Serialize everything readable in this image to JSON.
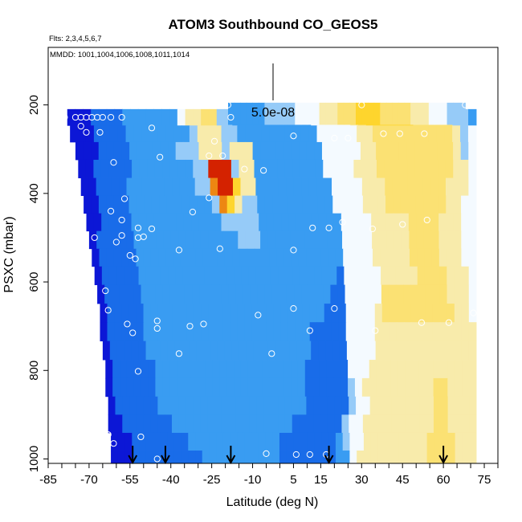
{
  "chart_data": {
    "type": "heatmap",
    "title": "ATOM3 Southbound CO_GEOS5",
    "flights_label": "Flts: 2,3,4,5,6,7",
    "dates_label": "MMDD: 1001,1004,1006,1008,1011,1014",
    "xlabel": "Latitude (deg N)",
    "ylabel": "PSXC (mbar)",
    "xlim": [
      -85,
      80
    ],
    "ylim": [
      1010,
      70
    ],
    "x_ticks": [
      -85,
      -70,
      -55,
      -40,
      -25,
      -10,
      5,
      15,
      30,
      45,
      60,
      75
    ],
    "y_ticks": [
      200,
      400,
      600,
      800,
      1000
    ],
    "scale_bar_label": "5.0e-08",
    "colors": {
      "low": "#0c17d6",
      "mid_low": "#1e8ef0",
      "neutral": "#f4faff",
      "mid_high": "#ffd21f",
      "high": "#d42200"
    },
    "profiles": [
      {
        "lat": -54,
        "p_top": 220,
        "p_bot": 1000
      },
      {
        "lat": -43,
        "p_top": 220,
        "p_bot": 1000
      },
      {
        "lat": -20,
        "p_top": 220,
        "p_bot": 1000
      },
      {
        "lat": 2,
        "p_top": 195,
        "p_bot": 1000
      },
      {
        "lat": 18,
        "p_top": 195,
        "p_bot": 1000
      },
      {
        "lat": 41,
        "p_top": 195,
        "p_bot": 1000
      },
      {
        "lat": 59,
        "p_top": 195,
        "p_bot": 1000
      }
    ],
    "arrow_latitudes": [
      -54,
      -42,
      -18,
      18,
      60
    ],
    "levels_mbar": [
      228,
      265,
      303,
      345,
      385,
      425,
      465,
      505,
      545,
      585,
      628,
      670,
      712,
      755,
      797,
      838,
      880,
      920,
      962,
      1000
    ],
    "row_start_lat": [
      -78,
      -77,
      -75,
      -74,
      -73,
      -72,
      -71,
      -70,
      -69,
      -68,
      -67,
      -66,
      -66,
      -65,
      -64,
      -64,
      -63,
      -63,
      -62,
      -62
    ],
    "value_key": {
      "q": -3,
      "w": -2,
      "e": -1.4,
      "r": -0.7,
      "t": 0,
      "y": 0.6,
      "u": 1,
      "i": 1.5,
      "o": 2.2,
      "p": 3
    },
    "rows": [
      "qqqwwwweeeeeeetyyuurreeeeeeeeeetttttyuiiiiiiuuuuurre",
      "qqqwwwweeeeeeeeryyyrreeeeeeeeeetttttyyuuuuuuuuuuyrt",
      "qqqwwwweeeeeerrryyyryyyeeeeeeeeetttttyyuuuuuuuuuuyrt",
      "qqwwwwweeeeeeeerrpppryyeeeeeeeeettttyyyuuuuuuuuuuyyt",
      "qqwwwweeeeeeeeerroppiyyeeeeeeeeeettttyyyuuuuuuuuyyyt",
      "qqwwwweeeeeeeeeeeroiyrreeeeeeeeeettttyyyuuuuuuuuyytt",
      "qqwwwweeeeeeeeeeeerrrrreeeeeeeeeeettttyyyyyuuuuyyytt",
      "qwwwwweeeeeeeeeeeeeerrreeeeeeeeeeettttyyyyyuuuuyyytt",
      "qwwwwweeeeeeeeeeeeeeeeeeeeeeeeeeeettttyyyyyuuuuyyytt",
      "qwwwwweeeeeeeeeeeeeeeeeeeeeeeeeeewtttttyyyyyuuuuyyyt",
      "qwwwwweeeeeeeeeeeeeeeeeeeeeeeeeewwtttttuuuuuuuuuyyyt",
      "qwwwwweeeeeeeeeeeeeeeeeeeeeeeeewwwttttyuuuuuuuuuuyyt",
      "qwwwwweeeeeeeeeeeeeeeeeeeeeeewwwwwttttyyyyyyyyyyyyyy",
      "qwwwwweeeeeeeeeeeeeeeeeeeeeeewwwwwttttyyyyyyyyyyyyyy",
      "qwwwwwweeeeeeeeeeeeeeeeeeeeewwwwwwtttyyyyyyyyyyyyyyy",
      "qwwwwwweeeeeeeeeeeeeeeeeeeeewwwwwwrtyyyyyyyyyyuuyyyy",
      "qwwwwwweeeeeeeeeeeeeeeeeeeeewwwwwwrttyyyyyyyyyuuyyyy",
      "qqwwwwwwweeeeeeeeeeeeeeeeewwwwwwwrttyyyyyyyyyyuuyyyy",
      "qqqwwwwwwwweeeeeeeeeeeeewwwwwwwwerttyyyyyyyyyuuuuyyy",
      "qqqwwwwwwwwwweeeeeeeeeeewwwwwwwweetyyyyyyyyyyuuuuyyy"
    ],
    "upper_band": {
      "p_top": 195,
      "p_bot": 245,
      "lat_start": -19,
      "lat_end": 68,
      "row": "eeeeeerrrrrttttyyyuuuiiiiuuuuuyyytttrrr"
    },
    "sample_points": [
      [
        -83,
        228
      ],
      [
        -79,
        228
      ],
      [
        -75,
        228
      ],
      [
        -73,
        228
      ],
      [
        -71,
        228
      ],
      [
        -69,
        228
      ],
      [
        -67,
        228
      ],
      [
        -65,
        228
      ],
      [
        -62,
        228
      ],
      [
        -58,
        228
      ],
      [
        -19,
        200
      ],
      [
        -18,
        228
      ],
      [
        30,
        200
      ],
      [
        68,
        200
      ],
      [
        -73,
        248
      ],
      [
        -71,
        262
      ],
      [
        -66,
        262
      ],
      [
        -47,
        252
      ],
      [
        -24,
        282
      ],
      [
        5,
        270
      ],
      [
        20,
        275
      ],
      [
        25,
        275
      ],
      [
        38,
        265
      ],
      [
        44,
        265
      ],
      [
        53,
        265
      ],
      [
        -61,
        330
      ],
      [
        -44,
        318
      ],
      [
        -26,
        315
      ],
      [
        -21,
        315
      ],
      [
        -13,
        345
      ],
      [
        -6,
        348
      ],
      [
        -57,
        412
      ],
      [
        -26,
        410
      ],
      [
        -62,
        440
      ],
      [
        -58,
        460
      ],
      [
        -58,
        495
      ],
      [
        -52,
        478
      ],
      [
        -47,
        480
      ],
      [
        -52,
        500
      ],
      [
        -50,
        498
      ],
      [
        -32,
        442
      ],
      [
        -60,
        510
      ],
      [
        -68,
        500
      ],
      [
        -55,
        540
      ],
      [
        -53,
        548
      ],
      [
        -37,
        528
      ],
      [
        -22,
        525
      ],
      [
        5,
        528
      ],
      [
        12,
        478
      ],
      [
        18,
        478
      ],
      [
        23,
        465
      ],
      [
        34,
        480
      ],
      [
        45,
        470
      ],
      [
        54,
        460
      ],
      [
        -64,
        620
      ],
      [
        -63,
        664
      ],
      [
        -56,
        695
      ],
      [
        -54,
        715
      ],
      [
        -45,
        688
      ],
      [
        -45,
        705
      ],
      [
        -33,
        700
      ],
      [
        -28,
        695
      ],
      [
        -8,
        675
      ],
      [
        5,
        660
      ],
      [
        11,
        710
      ],
      [
        20,
        660
      ],
      [
        35,
        710
      ],
      [
        52,
        692
      ],
      [
        62,
        692
      ],
      [
        71,
        670
      ],
      [
        -37,
        762
      ],
      [
        -52,
        802
      ],
      [
        -3,
        762
      ],
      [
        -63,
        945
      ],
      [
        -61,
        965
      ],
      [
        -65,
        965
      ],
      [
        -51,
        950
      ],
      [
        -45,
        1000
      ],
      [
        -5,
        988
      ],
      [
        6,
        990
      ],
      [
        11,
        990
      ],
      [
        17,
        990
      ]
    ]
  }
}
